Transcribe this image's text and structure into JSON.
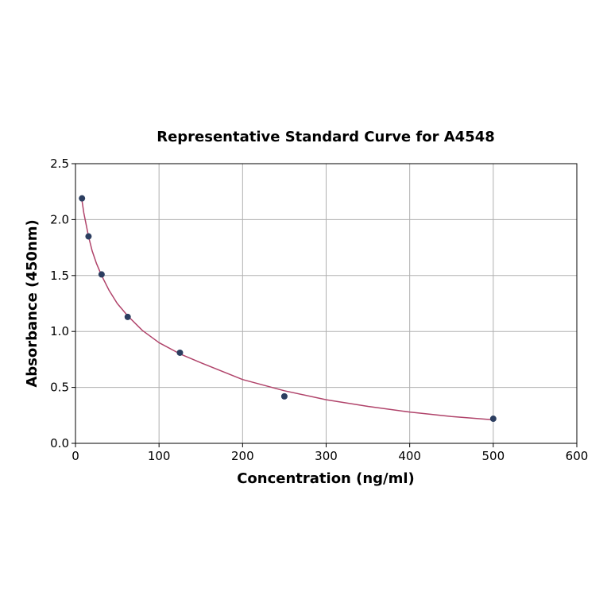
{
  "chart_data": {
    "type": "scatter",
    "title": "Representative Standard Curve for A4548",
    "xlabel": "Concentration (ng/ml)",
    "ylabel": "Absorbance (450nm)",
    "xlim": [
      0,
      600
    ],
    "ylim": [
      0,
      2.5
    ],
    "xticks": [
      "0",
      "100",
      "200",
      "300",
      "400",
      "500",
      "600"
    ],
    "yticks": [
      "0.0",
      "0.5",
      "1.0",
      "1.5",
      "2.0",
      "2.5"
    ],
    "grid": true,
    "series": [
      {
        "kind": "points",
        "x": [
          7.8,
          15.6,
          31.25,
          62.5,
          125,
          250,
          500
        ],
        "y": [
          2.19,
          1.85,
          1.51,
          1.13,
          0.81,
          0.42,
          0.22
        ]
      },
      {
        "kind": "fitted-curve",
        "x": [
          7.8,
          10,
          15.6,
          20,
          25,
          31.25,
          40,
          50,
          62.5,
          80,
          100,
          125,
          150,
          200,
          250,
          300,
          350,
          400,
          450,
          500
        ],
        "y": [
          2.17,
          2.06,
          1.85,
          1.72,
          1.61,
          1.5,
          1.37,
          1.25,
          1.14,
          1.01,
          0.9,
          0.8,
          0.72,
          0.57,
          0.47,
          0.39,
          0.33,
          0.28,
          0.24,
          0.21
        ]
      }
    ],
    "colors": {
      "points": "#2c3e60",
      "curve": "#b0436a",
      "grid": "#b0b0b0",
      "axes": "#000000"
    }
  }
}
